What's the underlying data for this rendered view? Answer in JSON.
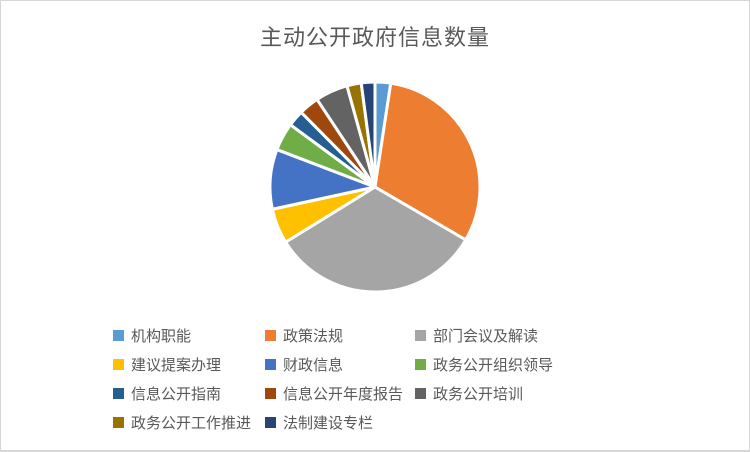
{
  "colors": {
    "background": "#FFFFFF",
    "canvas_border": "#D6D6D6",
    "title_text": "#595959",
    "legend_text": "#595959",
    "slice_gap_stroke": "#FFFFFF"
  },
  "chart_data": {
    "type": "pie",
    "title": "主动公开政府信息数量",
    "legend_position": "bottom",
    "start_angle_deg": 0,
    "direction": "clockwise",
    "values_are": "percent_of_total_estimated_from_slice_angles",
    "slices": [
      {
        "label": "机构职能",
        "percent": 2.4,
        "color": "#5B9BD5"
      },
      {
        "label": "政策法规",
        "percent": 31.0,
        "color": "#ED7D31"
      },
      {
        "label": "部门会议及解读",
        "percent": 32.8,
        "color": "#A5A5A5"
      },
      {
        "label": "建议提案办理",
        "percent": 5.4,
        "color": "#FFC000"
      },
      {
        "label": "财政信息",
        "percent": 9.2,
        "color": "#4472C4"
      },
      {
        "label": "政务公开组织领导",
        "percent": 4.3,
        "color": "#70AD47"
      },
      {
        "label": "信息公开指南",
        "percent": 2.5,
        "color": "#255E91"
      },
      {
        "label": "信息公开年度报告",
        "percent": 3.1,
        "color": "#9E480E"
      },
      {
        "label": "政务公开培训",
        "percent": 5.0,
        "color": "#636363"
      },
      {
        "label": "政务公开工作推进",
        "percent": 2.2,
        "color": "#997300"
      },
      {
        "label": "法制建设专栏",
        "percent": 2.1,
        "color": "#264478"
      }
    ]
  }
}
